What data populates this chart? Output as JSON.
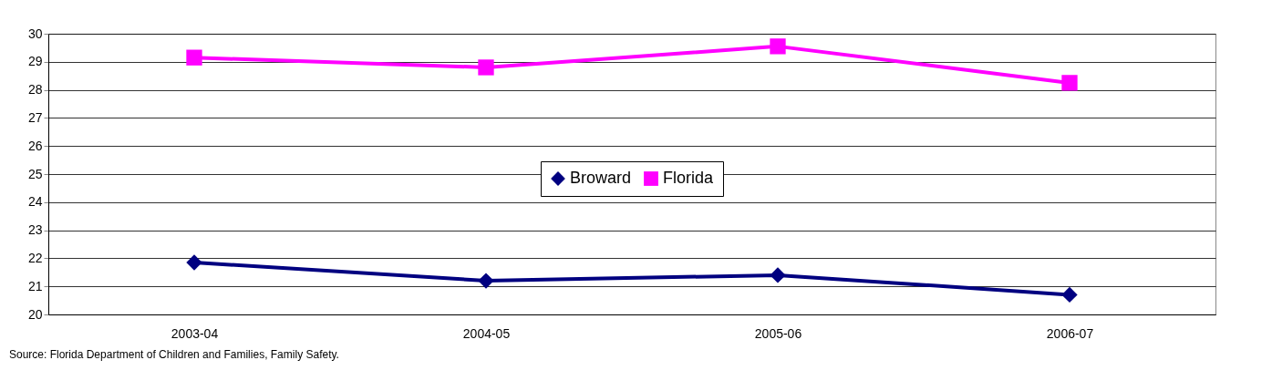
{
  "chart_data": {
    "type": "line",
    "categories": [
      "2003-04",
      "2004-05",
      "2005-06",
      "2006-07"
    ],
    "series": [
      {
        "name": "Broward",
        "color": "#000080",
        "marker": "diamond",
        "values": [
          21.85,
          21.2,
          21.4,
          20.7
        ]
      },
      {
        "name": "Florida",
        "color": "#ff00ff",
        "marker": "square",
        "values": [
          29.15,
          28.8,
          29.55,
          28.25
        ]
      }
    ],
    "ylim": [
      20,
      30
    ],
    "yticks": [
      20,
      21,
      22,
      23,
      24,
      25,
      26,
      27,
      28,
      29,
      30
    ],
    "grid": "y",
    "legend": "center",
    "annotations": [
      "Source:  Florida Department of Children and Families, Family Safety."
    ]
  }
}
